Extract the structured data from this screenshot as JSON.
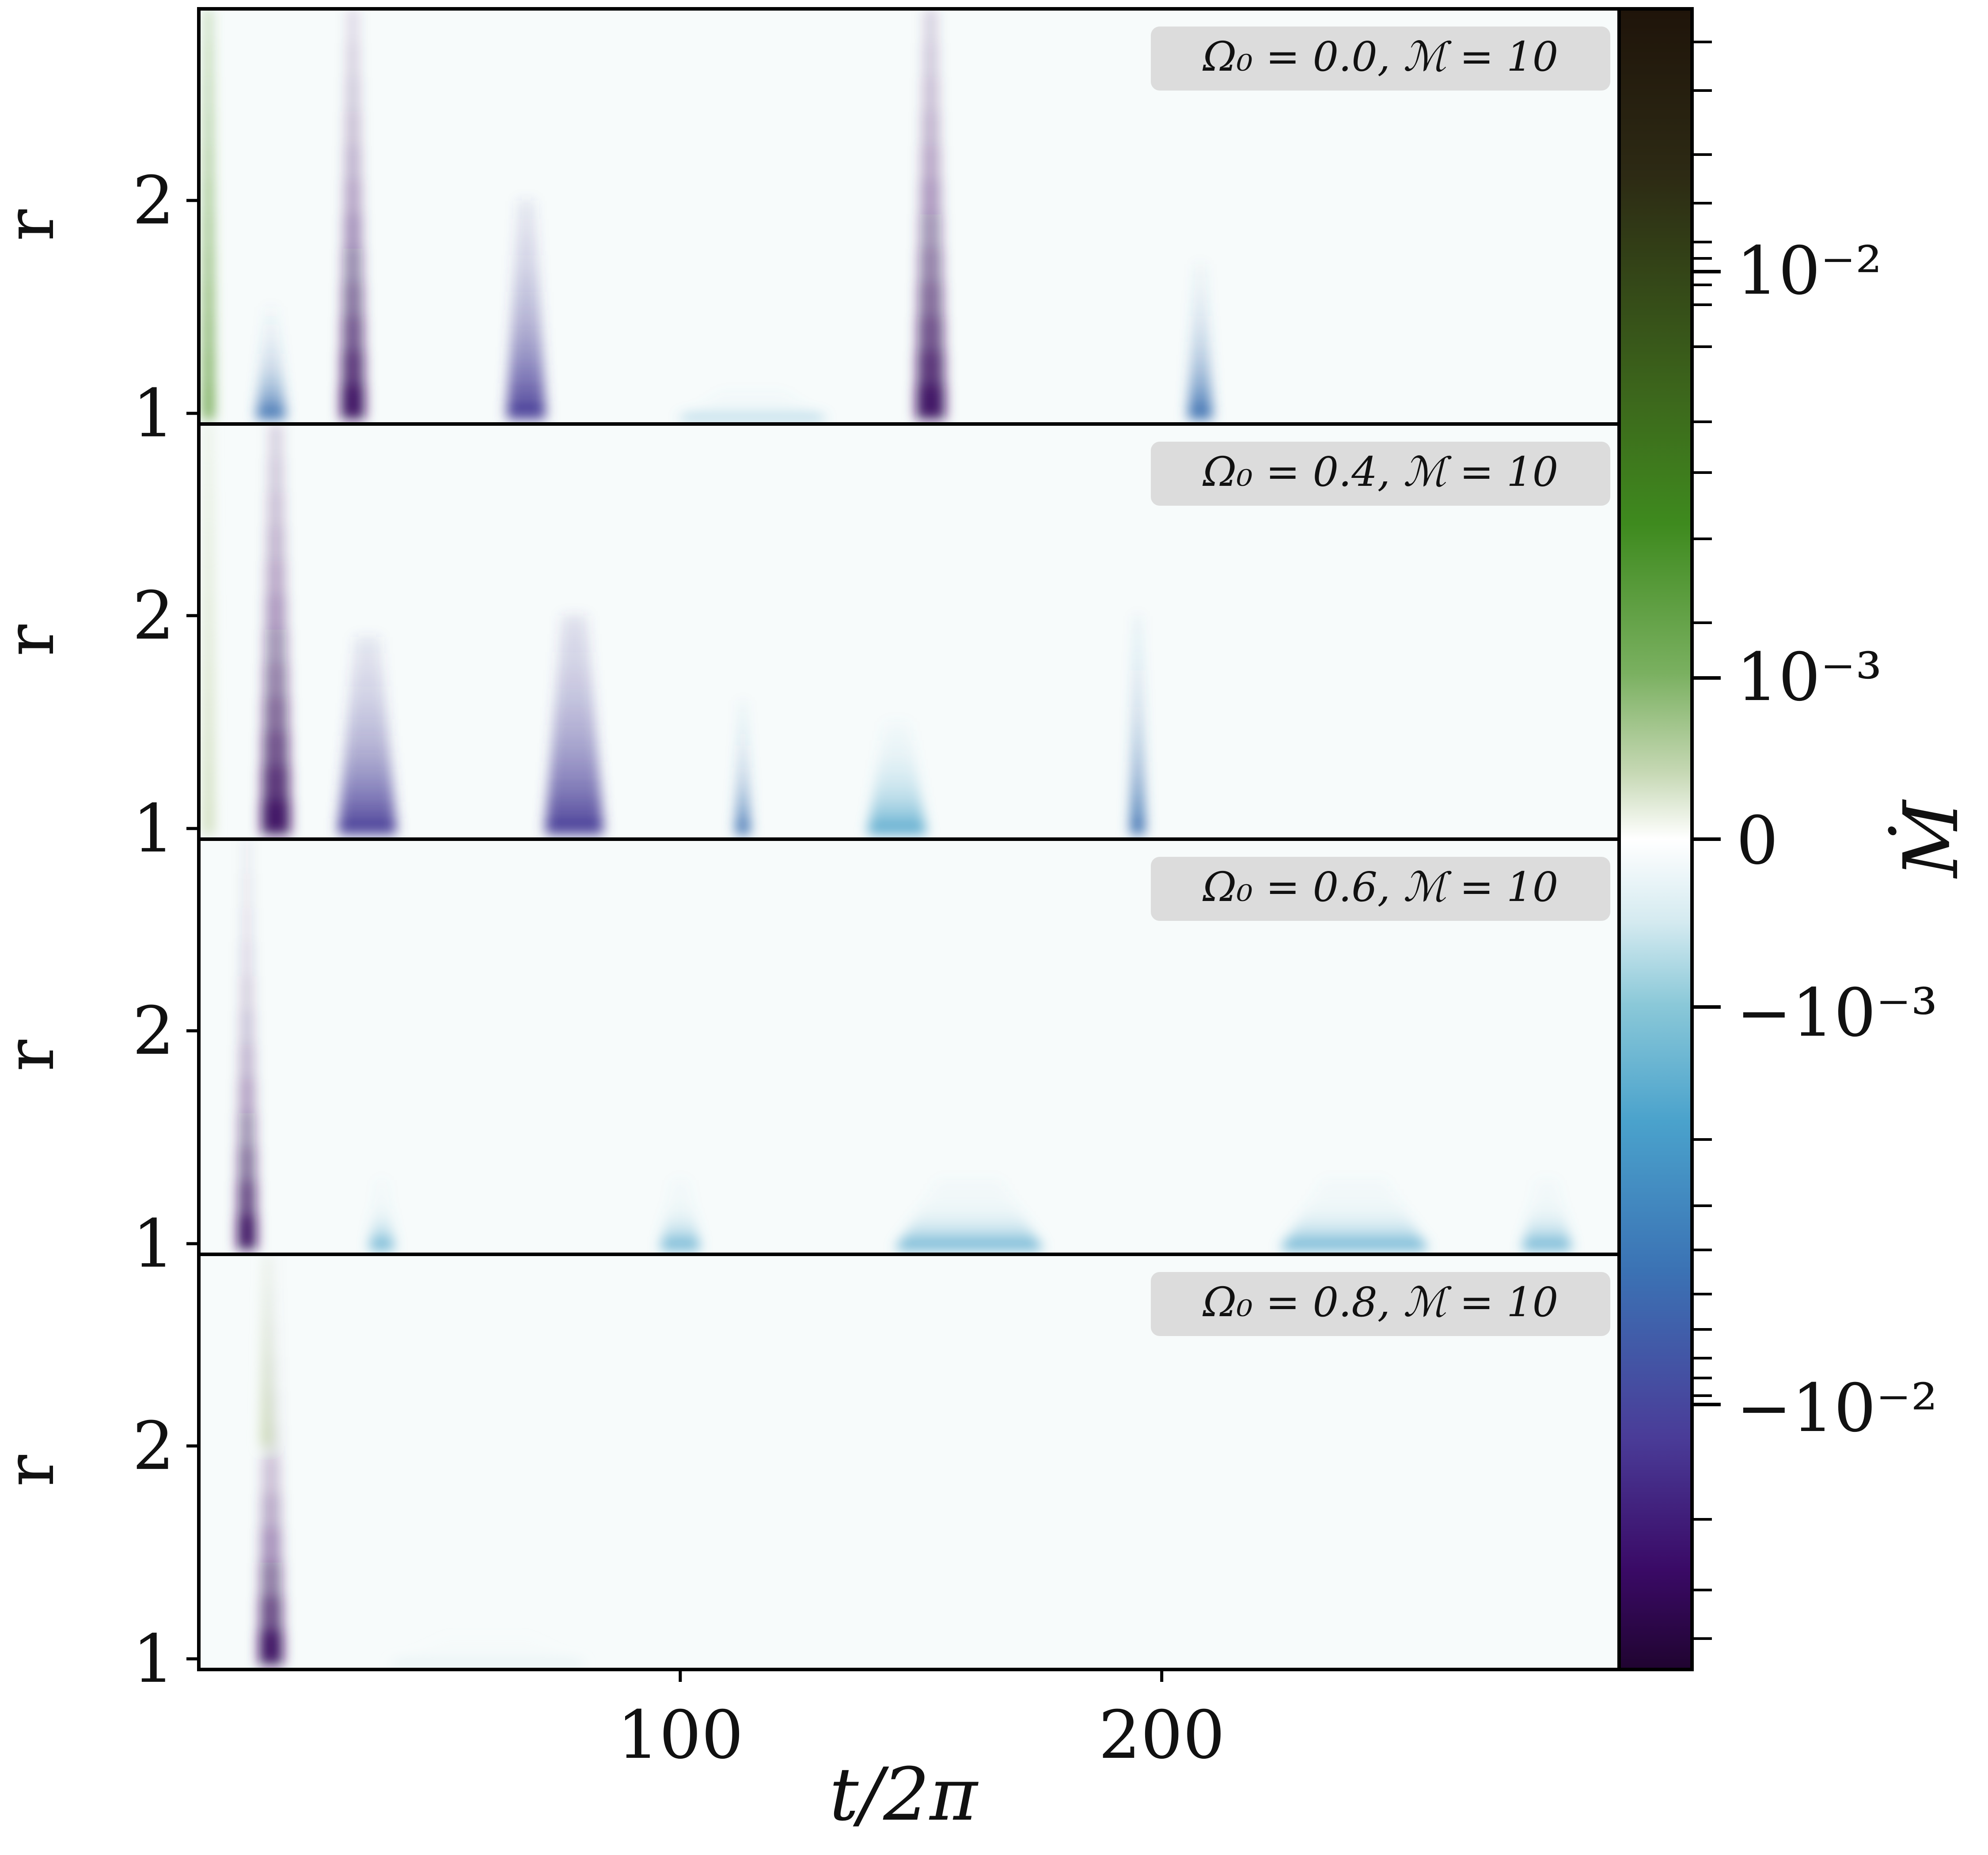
{
  "chart_data": {
    "type": "heatmap",
    "description_units": "space-time diagram of mass accretion rate",
    "xlabel": "t/2π",
    "ylabel": "r",
    "xlim": [
      0,
      295
    ],
    "ylim": [
      0.95,
      2.9
    ],
    "x_ticks": [
      100,
      200
    ],
    "x_tick_labels": [
      "100",
      "200"
    ],
    "y_ticks": [
      1,
      2
    ],
    "y_tick_labels": [
      "1",
      "2"
    ],
    "colorbar": {
      "label": "Ṁ",
      "scale": "symlog",
      "tick_labels": [
        "10⁻²",
        "10⁻³",
        "0",
        "−10⁻³",
        "−10⁻²"
      ],
      "tick_values": [
        0.01,
        0.001,
        0,
        -0.001,
        -0.01
      ],
      "colors_positive": [
        "#f4f2ec",
        "#c8d8b0",
        "#5a9a30",
        "#3a8a1a",
        "#2f4a1c",
        "#241a0e"
      ],
      "colors_negative": [
        "#ffffff",
        "#cfe6ec",
        "#55a8cc",
        "#3a6fb0",
        "#4a3f98",
        "#3a0f60",
        "#25063a"
      ]
    },
    "panels": [
      {
        "label": "Ω₀ = 0.0, ℳ = 10",
        "omega0": 0.0,
        "mach": 10,
        "features": [
          {
            "t": 2,
            "r_min": 0.97,
            "r_max": 2.9,
            "amp": 0.002,
            "width": 2,
            "decay": 2.0
          },
          {
            "t": 32,
            "r_min": 0.97,
            "r_max": 2.9,
            "amp": -0.02,
            "width": 5,
            "decay": 0.5
          },
          {
            "t": 68,
            "r_min": 0.97,
            "r_max": 2.0,
            "amp": -0.006,
            "width": 8,
            "decay": 0.45
          },
          {
            "t": 152,
            "r_min": 0.97,
            "r_max": 2.9,
            "amp": -0.015,
            "width": 6,
            "decay": 0.55
          },
          {
            "t": 208,
            "r_min": 0.97,
            "r_max": 1.7,
            "amp": -0.0025,
            "width": 5,
            "decay": 0.35
          },
          {
            "t": 115,
            "r_min": 0.97,
            "r_max": 1.1,
            "amp": -0.002,
            "width": 30,
            "decay": 0.08
          },
          {
            "t": 15,
            "r_min": 0.97,
            "r_max": 1.5,
            "amp": -0.003,
            "width": 6,
            "decay": 0.3
          }
        ]
      },
      {
        "label": "Ω₀ = 0.4, ℳ = 10",
        "omega0": 0.4,
        "mach": 10,
        "features": [
          {
            "t": 2,
            "r_min": 0.97,
            "r_max": 2.9,
            "amp": 0.001,
            "width": 2,
            "decay": 2.0
          },
          {
            "t": 16,
            "r_min": 0.97,
            "r_max": 2.9,
            "amp": -0.012,
            "width": 6,
            "decay": 0.55
          },
          {
            "t": 35,
            "r_min": 0.97,
            "r_max": 1.9,
            "amp": -0.007,
            "width": 12,
            "decay": 0.45
          },
          {
            "t": 78,
            "r_min": 0.97,
            "r_max": 2.0,
            "amp": -0.009,
            "width": 12,
            "decay": 0.5
          },
          {
            "t": 113,
            "r_min": 0.97,
            "r_max": 1.6,
            "amp": -0.003,
            "width": 3,
            "decay": 0.35
          },
          {
            "t": 195,
            "r_min": 0.97,
            "r_max": 2.0,
            "amp": -0.0035,
            "width": 3,
            "decay": 0.4
          },
          {
            "t": 145,
            "r_min": 0.97,
            "r_max": 1.5,
            "amp": -0.0015,
            "width": 12,
            "decay": 0.3
          }
        ]
      },
      {
        "label": "Ω₀ = 0.6, ℳ = 10",
        "omega0": 0.6,
        "mach": 10,
        "features": [
          {
            "t": 10,
            "r_min": 0.97,
            "r_max": 2.9,
            "amp": -0.012,
            "width": 4,
            "decay": 0.35
          },
          {
            "t": 38,
            "r_min": 0.97,
            "r_max": 1.3,
            "amp": -0.0015,
            "width": 5,
            "decay": 0.2
          },
          {
            "t": 100,
            "r_min": 0.97,
            "r_max": 1.3,
            "amp": -0.0015,
            "width": 8,
            "decay": 0.2
          },
          {
            "t": 160,
            "r_min": 0.97,
            "r_max": 1.3,
            "amp": -0.001,
            "width": 30,
            "decay": 0.2
          },
          {
            "t": 240,
            "r_min": 0.97,
            "r_max": 1.3,
            "amp": -0.0012,
            "width": 30,
            "decay": 0.2
          },
          {
            "t": 280,
            "r_min": 0.97,
            "r_max": 1.3,
            "amp": -0.0012,
            "width": 10,
            "decay": 0.2
          }
        ]
      },
      {
        "label": "Ω₀ = 0.8, ℳ = 10",
        "omega0": 0.8,
        "mach": 10,
        "features": [
          {
            "t": 15,
            "r_min": 0.97,
            "r_max": 2.9,
            "amp": -0.012,
            "width": 5,
            "decay": 0.3
          },
          {
            "t": 14,
            "r_min": 2.0,
            "r_max": 2.9,
            "amp": 0.0008,
            "width": 2,
            "decay": 1.0
          },
          {
            "t": 60,
            "r_min": 0.97,
            "r_max": 1.1,
            "amp": -0.0006,
            "width": 40,
            "decay": 0.08
          }
        ]
      }
    ]
  }
}
